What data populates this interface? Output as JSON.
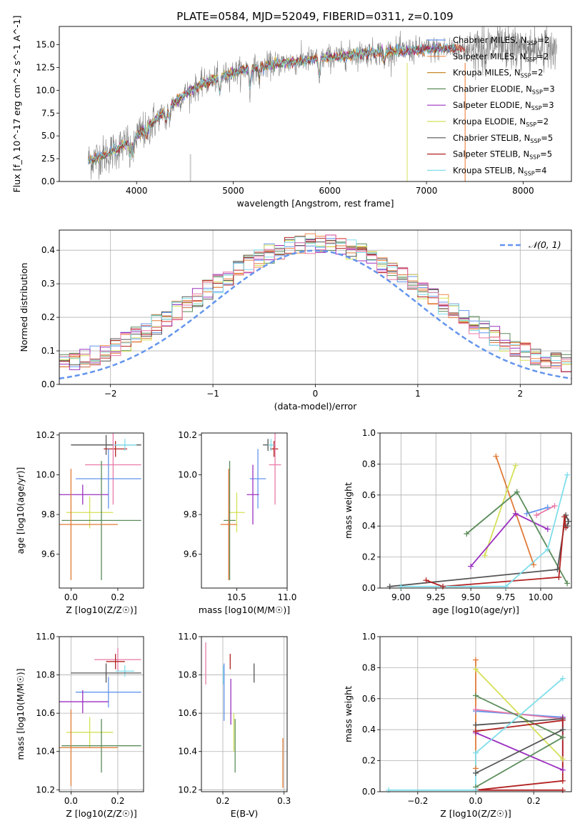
{
  "page_title": "PLATE=0584, MJD=52049, FIBERID=0311, z=0.109",
  "colors": {
    "grid": "#b0b0b0",
    "normal_curve": "#6495ed",
    "model_colors": [
      "#6495ed",
      "#ee8a4a",
      "#e07b39",
      "#5b8c5a",
      "#9b30c0",
      "#d4e157",
      "#555555",
      "#b22222",
      "#80deea",
      "#e879a6",
      "#c6e35a"
    ]
  },
  "chart_data": [
    {
      "id": "spectrum",
      "type": "line",
      "title": "PLATE=0584, MJD=52049, FIBERID=0311, z=0.109",
      "xlabel": "wavelength [Angstrom, rest frame]",
      "ylabel": "Flux [f_λ 10^-17 erg cm^-2 s^-1 A^-1]",
      "xlim": [
        3200,
        8500
      ],
      "ylim": [
        0,
        17
      ],
      "x_ticks": [
        "4000",
        "5000",
        "6000",
        "7000",
        "8000"
      ],
      "y_ticks": [
        "0.0",
        "2.5",
        "5.0",
        "7.5",
        "10.0",
        "12.5",
        "15.0"
      ],
      "legend": {
        "position": "top-right",
        "entries": [
          {
            "label": "Chabrier MILES, N_SSP=2",
            "color": "#6495ed"
          },
          {
            "label": "Salpeter MILES, N_SSP=2",
            "color": "#ee8a4a"
          },
          {
            "label": "Kroupa MILES, N_SSP=2",
            "color": "#c78a2a"
          },
          {
            "label": "Chabrier ELODIE, N_SSP=3",
            "color": "#5b8c5a"
          },
          {
            "label": "Salpeter ELODIE, N_SSP=3",
            "color": "#9b30c0"
          },
          {
            "label": "Kroupa ELODIE, N_SSP=2",
            "color": "#d4e157"
          },
          {
            "label": "Chabrier STELIB, N_SSP=5",
            "color": "#555555"
          },
          {
            "label": "Salpeter STELIB, N_SSP=5",
            "color": "#b22222"
          },
          {
            "label": "Kroupa STELIB, N_SSP=4",
            "color": "#80deea"
          }
        ]
      },
      "series_trend": {
        "x": [
          3500,
          3700,
          3900,
          4100,
          4300,
          4500,
          4700,
          4900,
          5100,
          5300,
          5500,
          5700,
          5900,
          6100,
          6300,
          6500,
          6700,
          6900,
          7100,
          7300,
          7400
        ],
        "y": [
          2.3,
          3.0,
          4.2,
          5.8,
          7.8,
          9.6,
          10.8,
          11.6,
          12.2,
          12.6,
          13.0,
          13.2,
          13.5,
          13.7,
          14.0,
          14.2,
          14.3,
          14.4,
          14.5,
          14.6,
          14.6
        ]
      }
    },
    {
      "id": "residual-distribution",
      "type": "bar",
      "xlabel": "(data-model)/error",
      "ylabel": "Normed distribution",
      "xlim": [
        -2.5,
        2.5
      ],
      "ylim": [
        0,
        0.46
      ],
      "x_ticks": [
        "−2",
        "−1",
        "0",
        "1",
        "2"
      ],
      "y_ticks": [
        "0.0",
        "0.1",
        "0.2",
        "0.3",
        "0.4"
      ],
      "legend": {
        "position": "top-right",
        "entries": [
          {
            "label": "𝒩(0, 1)",
            "color": "#6495ed",
            "style": "dashed"
          }
        ]
      },
      "normal": {
        "mean": 0,
        "std": 1
      }
    },
    {
      "id": "age-vs-Z",
      "type": "scatter",
      "xlabel": "Z [log10(Z/Z☉)]",
      "ylabel": "age [log10(age/yr)]",
      "xlim": [
        -0.05,
        0.31
      ],
      "ylim": [
        9.43,
        10.21
      ],
      "x_ticks": [
        "0.0",
        "0.2"
      ],
      "y_ticks": [
        "9.6",
        "9.8",
        "10.0",
        "10.2"
      ],
      "points": [
        {
          "x": 0.15,
          "y": 10.15,
          "xerr": 0.15,
          "yerr": 0.05,
          "color": "#555555"
        },
        {
          "x": 0.19,
          "y": 10.13,
          "xerr": 0.05,
          "yerr": 0.04,
          "color": "#b22222"
        },
        {
          "x": 0.23,
          "y": 10.15,
          "xerr": 0.05,
          "yerr": 0.03,
          "color": "#80deea"
        },
        {
          "x": 0.18,
          "y": 10.05,
          "xerr": 0.12,
          "yerr": 0.2,
          "color": "#e879a6"
        },
        {
          "x": 0.16,
          "y": 9.98,
          "xerr": 0.14,
          "yerr": 0.15,
          "color": "#6495ed"
        },
        {
          "x": 0.05,
          "y": 9.9,
          "xerr": 0.11,
          "yerr": 0.05,
          "color": "#9b30c0"
        },
        {
          "x": 0.08,
          "y": 9.81,
          "xerr": 0.1,
          "yerr": 0.08,
          "color": "#d4e157"
        },
        {
          "x": 0.13,
          "y": 9.77,
          "xerr": 0.17,
          "yerr": 0.3,
          "color": "#5b8c5a"
        },
        {
          "x": 0.0,
          "y": 9.75,
          "xerr": 0.2,
          "yerr": 0.28,
          "color": "#e07b39"
        }
      ]
    },
    {
      "id": "age-vs-mass",
      "type": "scatter",
      "xlabel": "mass [log10(M/M☉)]",
      "ylabel": "",
      "xlim": [
        10.15,
        11.0
      ],
      "ylim": [
        9.43,
        10.21
      ],
      "x_ticks": [
        "10.5",
        "11.0"
      ],
      "y_ticks": [
        "9.6",
        "9.8",
        "10.0",
        "10.2"
      ],
      "points": [
        {
          "x": 10.81,
          "y": 10.15,
          "xerr": 0.05,
          "yerr": 0.03,
          "color": "#555555"
        },
        {
          "x": 10.87,
          "y": 10.13,
          "xerr": 0.04,
          "yerr": 0.04,
          "color": "#b22222"
        },
        {
          "x": 10.84,
          "y": 10.15,
          "xerr": 0.03,
          "yerr": 0.03,
          "color": "#80deea"
        },
        {
          "x": 10.88,
          "y": 10.05,
          "xerr": 0.06,
          "yerr": 0.2,
          "color": "#e879a6"
        },
        {
          "x": 10.71,
          "y": 9.98,
          "xerr": 0.08,
          "yerr": 0.15,
          "color": "#6495ed"
        },
        {
          "x": 10.66,
          "y": 9.9,
          "xerr": 0.06,
          "yerr": 0.15,
          "color": "#9b30c0"
        },
        {
          "x": 10.5,
          "y": 9.81,
          "xerr": 0.08,
          "yerr": 0.1,
          "color": "#d4e157"
        },
        {
          "x": 10.43,
          "y": 9.77,
          "xerr": 0.06,
          "yerr": 0.3,
          "color": "#5b8c5a"
        },
        {
          "x": 10.42,
          "y": 9.75,
          "xerr": 0.08,
          "yerr": 0.28,
          "color": "#e07b39"
        }
      ]
    },
    {
      "id": "weight-vs-age",
      "type": "line",
      "xlabel": "age [log10(age/yr)]",
      "ylabel": "mass weight",
      "xlim": [
        8.85,
        10.22
      ],
      "ylim": [
        0,
        1
      ],
      "x_ticks": [
        "9.00",
        "9.25",
        "9.50",
        "9.75",
        "10.00"
      ],
      "y_ticks": [
        "0.0",
        "0.2",
        "0.4",
        "0.6",
        "0.8",
        "1.0"
      ],
      "series": [
        {
          "color": "#e07b39",
          "x": [
            9.68,
            9.95
          ],
          "y": [
            0.85,
            0.15
          ]
        },
        {
          "color": "#6495ed",
          "x": [
            9.9,
            10.05
          ],
          "y": [
            0.48,
            0.52
          ]
        },
        {
          "color": "#e879a6",
          "x": [
            9.97,
            10.1
          ],
          "y": [
            0.47,
            0.53
          ]
        },
        {
          "color": "#d4e157",
          "x": [
            9.6,
            9.82
          ],
          "y": [
            0.21,
            0.79
          ]
        },
        {
          "color": "#9b30c0",
          "x": [
            9.5,
            9.82,
            10.05
          ],
          "y": [
            0.14,
            0.48,
            0.38
          ]
        },
        {
          "color": "#5b8c5a",
          "x": [
            9.47,
            9.83,
            10.19
          ],
          "y": [
            0.35,
            0.62,
            0.03
          ]
        },
        {
          "color": "#555555",
          "x": [
            8.92,
            10.12,
            10.18,
            10.2,
            10.19
          ],
          "y": [
            0.01,
            0.12,
            0.47,
            0.43,
            0.4
          ]
        },
        {
          "color": "#b22222",
          "x": [
            9.18,
            9.3,
            10.13,
            10.17,
            10.18
          ],
          "y": [
            0.05,
            0.01,
            0.07,
            0.46,
            0.39
          ]
        },
        {
          "color": "#80deea",
          "x": [
            9.0,
            9.75,
            10.05,
            10.19
          ],
          "y": [
            0.01,
            0.01,
            0.25,
            0.73
          ]
        }
      ]
    },
    {
      "id": "mass-vs-Z",
      "type": "scatter",
      "xlabel": "Z [log10(Z/Z☉)]",
      "ylabel": "mass [log10(M/M☉)]",
      "xlim": [
        -0.05,
        0.31
      ],
      "ylim": [
        10.19,
        11.0
      ],
      "x_ticks": [
        "0.0",
        "0.2"
      ],
      "y_ticks": [
        "10.2",
        "10.4",
        "10.6",
        "10.8",
        "11.0"
      ],
      "points": [
        {
          "x": 0.2,
          "y": 10.88,
          "xerr": 0.1,
          "yerr": 0.06,
          "color": "#e879a6"
        },
        {
          "x": 0.19,
          "y": 10.87,
          "xerr": 0.04,
          "yerr": 0.04,
          "color": "#b22222"
        },
        {
          "x": 0.23,
          "y": 10.82,
          "xerr": 0.04,
          "yerr": 0.03,
          "color": "#80deea"
        },
        {
          "x": 0.15,
          "y": 10.81,
          "xerr": 0.15,
          "yerr": 0.05,
          "color": "#555555"
        },
        {
          "x": 0.16,
          "y": 10.71,
          "xerr": 0.14,
          "yerr": 0.08,
          "color": "#6495ed"
        },
        {
          "x": 0.05,
          "y": 10.66,
          "xerr": 0.11,
          "yerr": 0.06,
          "color": "#9b30c0"
        },
        {
          "x": 0.08,
          "y": 10.5,
          "xerr": 0.1,
          "yerr": 0.08,
          "color": "#d4e157"
        },
        {
          "x": 0.13,
          "y": 10.43,
          "xerr": 0.17,
          "yerr": 0.14,
          "color": "#5b8c5a"
        },
        {
          "x": 0.0,
          "y": 10.42,
          "xerr": 0.2,
          "yerr": 0.2,
          "color": "#e07b39"
        }
      ]
    },
    {
      "id": "mass-vs-ebv",
      "type": "scatter",
      "xlabel": "E(B-V)",
      "ylabel": "",
      "xlim": [
        0.165,
        0.305
      ],
      "ylim": [
        10.19,
        11.0
      ],
      "x_ticks": [
        "0.2",
        "0.3"
      ],
      "y_ticks": [
        "10.2",
        "10.4",
        "10.6",
        "10.8",
        "11.0"
      ],
      "points": [
        {
          "x": 0.172,
          "y": 10.86,
          "yerr": 0.11,
          "color": "#e879a6"
        },
        {
          "x": 0.212,
          "y": 10.87,
          "yerr": 0.04,
          "color": "#b22222"
        },
        {
          "x": 0.201,
          "y": 10.8,
          "yerr": 0.05,
          "color": "#80deea"
        },
        {
          "x": 0.251,
          "y": 10.81,
          "yerr": 0.05,
          "color": "#555555"
        },
        {
          "x": 0.202,
          "y": 10.71,
          "yerr": 0.15,
          "color": "#6495ed"
        },
        {
          "x": 0.213,
          "y": 10.66,
          "yerr": 0.12,
          "color": "#9b30c0"
        },
        {
          "x": 0.218,
          "y": 10.5,
          "yerr": 0.1,
          "color": "#d4e157"
        },
        {
          "x": 0.22,
          "y": 10.43,
          "yerr": 0.14,
          "color": "#5b8c5a"
        },
        {
          "x": 0.298,
          "y": 10.34,
          "yerr": 0.13,
          "color": "#e07b39"
        }
      ]
    },
    {
      "id": "weight-vs-Z",
      "type": "line",
      "xlabel": "Z [log10(Z/Z☉)]",
      "ylabel": "mass weight",
      "xlim": [
        -0.33,
        0.33
      ],
      "ylim": [
        0,
        1
      ],
      "x_ticks": [
        "−0.2",
        "0.0",
        "0.2"
      ],
      "y_ticks": [
        "0.0",
        "0.2",
        "0.4",
        "0.6",
        "0.8",
        "1.0"
      ],
      "series": [
        {
          "color": "#e07b39",
          "x": [
            0.0,
            0.0
          ],
          "y": [
            0.85,
            0.15
          ]
        },
        {
          "color": "#6495ed",
          "x": [
            0.0,
            0.3
          ],
          "y": [
            0.52,
            0.48
          ]
        },
        {
          "color": "#e879a6",
          "x": [
            0.0,
            0.3
          ],
          "y": [
            0.53,
            0.47
          ]
        },
        {
          "color": "#d4e157",
          "x": [
            0.0,
            0.3
          ],
          "y": [
            0.79,
            0.21
          ]
        },
        {
          "color": "#9b30c0",
          "x": [
            0.0,
            0.3,
            0.3
          ],
          "y": [
            0.38,
            0.14,
            0.48
          ]
        },
        {
          "color": "#5b8c5a",
          "x": [
            0.0,
            0.3,
            0.0
          ],
          "y": [
            0.62,
            0.35,
            0.03
          ]
        },
        {
          "color": "#555555",
          "x": [
            0.0,
            0.3,
            0.3,
            0.0
          ],
          "y": [
            0.12,
            0.4,
            0.47,
            0.43
          ]
        },
        {
          "color": "#b22222",
          "x": [
            0.0,
            0.3,
            0.3,
            0.0,
            0.3
          ],
          "y": [
            0.39,
            0.46,
            0.07,
            0.01,
            0.01
          ]
        },
        {
          "color": "#80deea",
          "x": [
            -0.3,
            0.0,
            0.0,
            0.3
          ],
          "y": [
            0.01,
            0.01,
            0.25,
            0.73
          ]
        }
      ]
    }
  ]
}
